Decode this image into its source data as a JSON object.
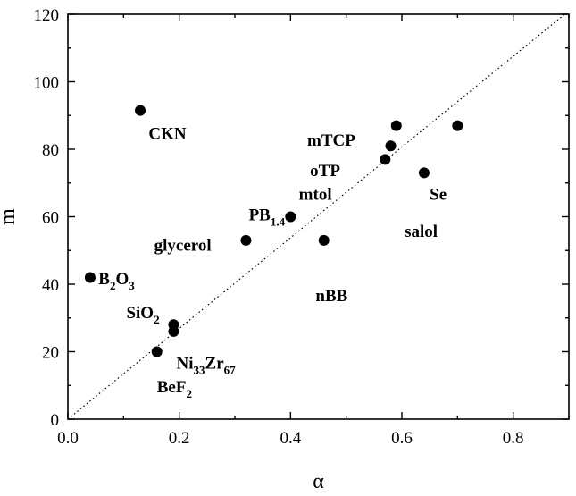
{
  "chart_data": {
    "type": "scatter",
    "title": "",
    "xlabel": "α",
    "ylabel": "m",
    "xlim": [
      0.0,
      0.9
    ],
    "ylim": [
      0,
      120
    ],
    "x_ticks": [
      0.0,
      0.2,
      0.4,
      0.6,
      0.8
    ],
    "x_tick_labels": [
      "0.0",
      "0.2",
      "0.4",
      "0.6",
      "0.8"
    ],
    "y_ticks": [
      0,
      20,
      40,
      60,
      80,
      100,
      120
    ],
    "y_tick_labels": [
      "0",
      "20",
      "40",
      "60",
      "80",
      "100",
      "120"
    ],
    "grid": false,
    "reference_line": {
      "style": "dotted",
      "points": [
        [
          0.0,
          0.0
        ],
        [
          0.9,
          121
        ]
      ]
    },
    "points": [
      {
        "x": 0.13,
        "y": 91.5
      },
      {
        "x": 0.04,
        "y": 42
      },
      {
        "x": 0.19,
        "y": 28
      },
      {
        "x": 0.19,
        "y": 26
      },
      {
        "x": 0.16,
        "y": 20
      },
      {
        "x": 0.32,
        "y": 53
      },
      {
        "x": 0.4,
        "y": 60
      },
      {
        "x": 0.46,
        "y": 53
      },
      {
        "x": 0.57,
        "y": 77
      },
      {
        "x": 0.58,
        "y": 81
      },
      {
        "x": 0.59,
        "y": 87
      },
      {
        "x": 0.64,
        "y": 73
      },
      {
        "x": 0.7,
        "y": 87
      }
    ],
    "labels": [
      {
        "parts": [
          [
            "CKN",
            ""
          ]
        ],
        "x": 0.145,
        "y": 83
      },
      {
        "parts": [
          [
            "B",
            ""
          ],
          [
            "2",
            "sub"
          ],
          [
            "O",
            ""
          ],
          [
            "3",
            "sub"
          ]
        ],
        "x": 0.055,
        "y": 40
      },
      {
        "parts": [
          [
            "SiO",
            ""
          ],
          [
            "2",
            "sub"
          ]
        ],
        "x": 0.105,
        "y": 30
      },
      {
        "parts": [
          [
            "Ni",
            ""
          ],
          [
            "33",
            "sub"
          ],
          [
            "Zr",
            ""
          ],
          [
            "67",
            "sub"
          ]
        ],
        "x": 0.195,
        "y": 15
      },
      {
        "parts": [
          [
            "BeF",
            ""
          ],
          [
            "2",
            "sub"
          ]
        ],
        "x": 0.16,
        "y": 8
      },
      {
        "parts": [
          [
            "glycerol",
            ""
          ]
        ],
        "x": 0.155,
        "y": 50
      },
      {
        "parts": [
          [
            "PB",
            ""
          ],
          [
            "1.4",
            "sub"
          ]
        ],
        "x": 0.325,
        "y": 59
      },
      {
        "parts": [
          [
            "mtol",
            ""
          ]
        ],
        "x": 0.415,
        "y": 65
      },
      {
        "parts": [
          [
            "oTP",
            ""
          ]
        ],
        "x": 0.435,
        "y": 72
      },
      {
        "parts": [
          [
            "mTCP",
            ""
          ]
        ],
        "x": 0.43,
        "y": 81
      },
      {
        "parts": [
          [
            "nBB",
            ""
          ]
        ],
        "x": 0.445,
        "y": 35
      },
      {
        "parts": [
          [
            "salol",
            ""
          ]
        ],
        "x": 0.605,
        "y": 54
      },
      {
        "parts": [
          [
            "Se",
            ""
          ]
        ],
        "x": 0.65,
        "y": 65
      }
    ]
  }
}
